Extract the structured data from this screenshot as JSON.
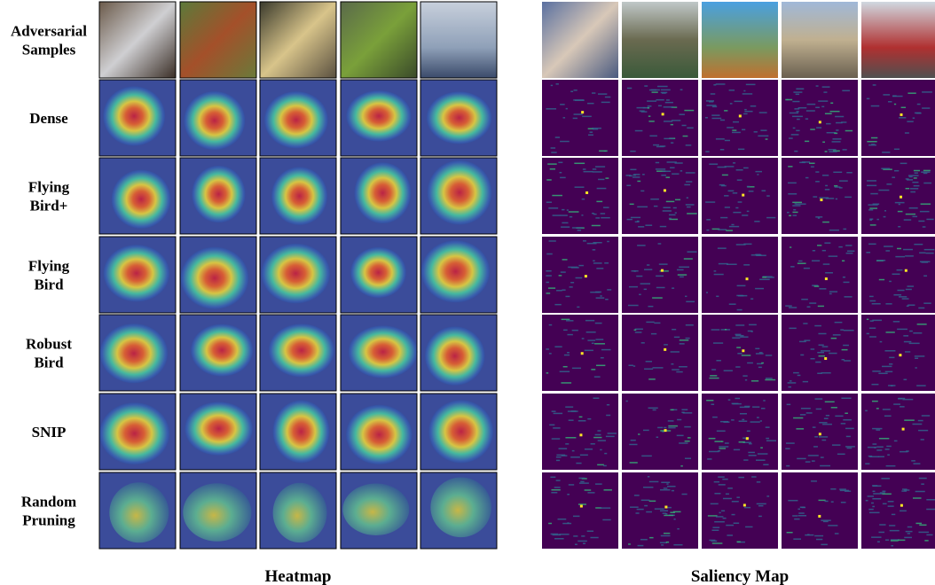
{
  "row_labels": [
    [
      "Adversarial",
      "Samples"
    ],
    [
      "Dense"
    ],
    [
      "Flying",
      "Bird+"
    ],
    [
      "Flying",
      "Bird"
    ],
    [
      "Robust",
      "Bird"
    ],
    [
      "SNIP"
    ],
    [
      "Random",
      "Pruning"
    ]
  ],
  "panels": [
    {
      "caption": "Heatmap"
    },
    {
      "caption": "Saliency Map"
    }
  ]
}
